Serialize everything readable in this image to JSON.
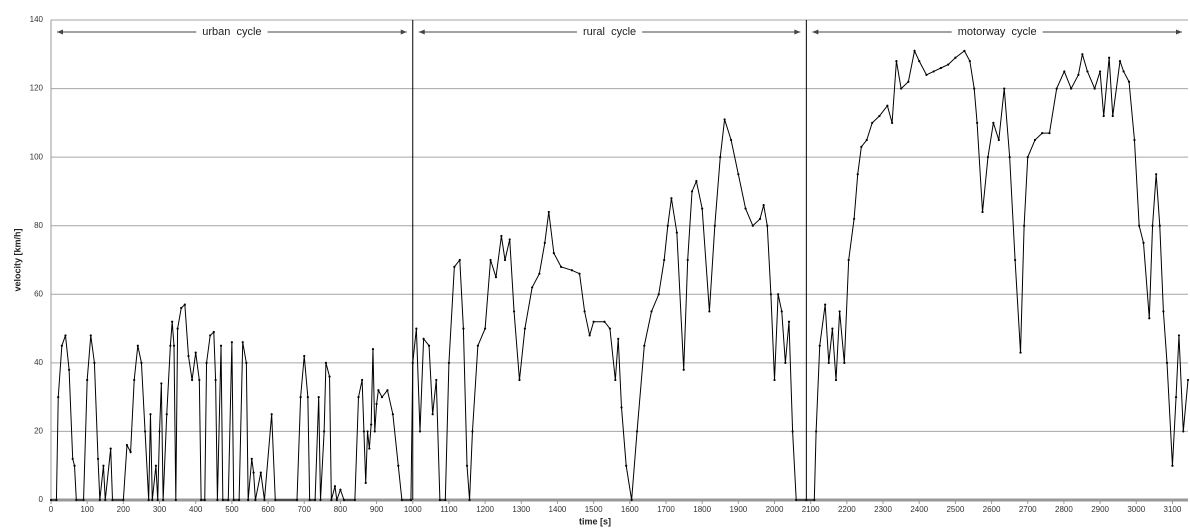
{
  "chart_data": {
    "type": "line",
    "xlabel": "time [s]",
    "ylabel": "velocity [km/h]",
    "color": "#000000",
    "grid": true,
    "xlim": [
      0,
      3143
    ],
    "ylim": [
      0,
      140
    ],
    "xticks": [
      0,
      100,
      200,
      300,
      400,
      500,
      600,
      700,
      800,
      900,
      1000,
      1100,
      1200,
      1300,
      1400,
      1500,
      1600,
      1700,
      1800,
      1900,
      2000,
      2100,
      2200,
      2300,
      2400,
      2500,
      2600,
      2700,
      2800,
      2900,
      3000,
      3100
    ],
    "yticks": [
      0,
      20,
      40,
      60,
      80,
      100,
      120,
      140
    ],
    "segments": [
      {
        "label": "urban  cycle",
        "start": 0,
        "end": 1000
      },
      {
        "label": "rural  cycle",
        "start": 1000,
        "end": 2088
      },
      {
        "label": "motorway  cycle",
        "start": 2088,
        "end": 3143
      }
    ],
    "x": [
      0,
      15,
      20,
      30,
      40,
      50,
      60,
      65,
      70,
      90,
      100,
      110,
      120,
      130,
      135,
      145,
      150,
      165,
      170,
      200,
      210,
      220,
      230,
      240,
      250,
      260,
      270,
      275,
      280,
      290,
      295,
      300,
      305,
      310,
      320,
      330,
      335,
      340,
      345,
      350,
      360,
      370,
      380,
      390,
      400,
      410,
      415,
      425,
      430,
      440,
      450,
      455,
      460,
      470,
      475,
      490,
      500,
      505,
      520,
      530,
      540,
      545,
      555,
      560,
      565,
      580,
      590,
      610,
      620,
      680,
      690,
      700,
      710,
      715,
      730,
      740,
      745,
      755,
      760,
      770,
      775,
      785,
      790,
      800,
      810,
      840,
      850,
      860,
      865,
      870,
      875,
      880,
      885,
      890,
      895,
      900,
      905,
      915,
      930,
      945,
      960,
      970,
      995,
      1000,
      1010,
      1020,
      1030,
      1045,
      1055,
      1065,
      1075,
      1090,
      1100,
      1115,
      1130,
      1140,
      1150,
      1157,
      1165,
      1180,
      1200,
      1215,
      1230,
      1245,
      1255,
      1268,
      1280,
      1295,
      1310,
      1330,
      1350,
      1365,
      1376,
      1390,
      1410,
      1440,
      1461,
      1475,
      1489,
      1500,
      1530,
      1545,
      1560,
      1568,
      1577,
      1590,
      1605,
      1620,
      1640,
      1660,
      1680,
      1695,
      1705,
      1715,
      1730,
      1749,
      1760,
      1772,
      1784,
      1800,
      1820,
      1835,
      1850,
      1862,
      1880,
      1900,
      1920,
      1940,
      1960,
      1970,
      1980,
      1990,
      2000,
      2010,
      2020,
      2030,
      2040,
      2050,
      2060,
      2088,
      2110,
      2115,
      2125,
      2140,
      2150,
      2160,
      2170,
      2180,
      2193,
      2205,
      2220,
      2230,
      2240,
      2255,
      2270,
      2290,
      2312,
      2325,
      2337,
      2350,
      2370,
      2387,
      2400,
      2420,
      2440,
      2460,
      2480,
      2500,
      2525,
      2540,
      2552,
      2560,
      2575,
      2590,
      2605,
      2620,
      2635,
      2650,
      2665,
      2680,
      2690,
      2700,
      2720,
      2740,
      2760,
      2780,
      2801,
      2820,
      2840,
      2851,
      2865,
      2885,
      2900,
      2910,
      2925,
      2935,
      2955,
      2965,
      2980,
      2995,
      3008,
      3020,
      3036,
      3045,
      3055,
      3065,
      3075,
      3085,
      3100,
      3110,
      3118,
      3130,
      3143
    ],
    "values": [
      0,
      0,
      30,
      45,
      48,
      38,
      12,
      10,
      0,
      0,
      35,
      48,
      40,
      12,
      0,
      10,
      0,
      15,
      0,
      0,
      16,
      14,
      35,
      45,
      40,
      20,
      0,
      25,
      0,
      10,
      0,
      20,
      34,
      0,
      25,
      45,
      52,
      45,
      0,
      50,
      56,
      57,
      42,
      35,
      43,
      35,
      0,
      0,
      40,
      48,
      49,
      35,
      0,
      45,
      0,
      0,
      46,
      0,
      0,
      46,
      40,
      0,
      12,
      8,
      0,
      8,
      0,
      25,
      0,
      0,
      30,
      42,
      30,
      0,
      0,
      30,
      0,
      20,
      40,
      36,
      0,
      4,
      0,
      3,
      0,
      0,
      30,
      35,
      20,
      5,
      20,
      15,
      22,
      44,
      20,
      28,
      32,
      30,
      32,
      25,
      10,
      0,
      0,
      40,
      50,
      20,
      47,
      45,
      25,
      35,
      0,
      0,
      40,
      68,
      70,
      50,
      10,
      0,
      20,
      45,
      50,
      70,
      65,
      77,
      70,
      76,
      55,
      35,
      50,
      62,
      66,
      75,
      84,
      72,
      68,
      67,
      66,
      55,
      48,
      52,
      52,
      50,
      35,
      47,
      27,
      10,
      0,
      20,
      45,
      55,
      60,
      70,
      80,
      88,
      78,
      38,
      70,
      90,
      93,
      85,
      55,
      80,
      100,
      111,
      105,
      95,
      85,
      80,
      82,
      86,
      80,
      60,
      35,
      60,
      55,
      40,
      52,
      20,
      0,
      0,
      0,
      20,
      45,
      57,
      40,
      50,
      35,
      55,
      40,
      70,
      82,
      95,
      103,
      105,
      110,
      112,
      115,
      110,
      128,
      120,
      122,
      131,
      128,
      124,
      125,
      126,
      127,
      129,
      131,
      128,
      120,
      110,
      84,
      100,
      110,
      105,
      120,
      100,
      70,
      43,
      80,
      100,
      105,
      107,
      107,
      120,
      125,
      120,
      124,
      130,
      125,
      120,
      125,
      112,
      129,
      112,
      128,
      125,
      122,
      105,
      80,
      75,
      53,
      80,
      95,
      80,
      55,
      40,
      10,
      30,
      48,
      20,
      35
    ]
  }
}
